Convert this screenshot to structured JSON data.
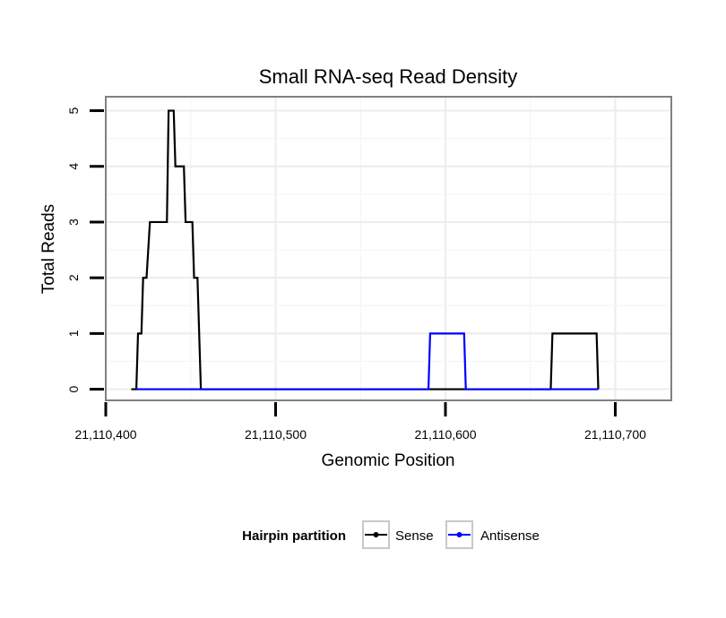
{
  "chart_data": {
    "type": "line",
    "title": "Small RNA-seq Read Density",
    "xlabel": "Genomic Position",
    "ylabel": "Total Reads",
    "xlim": [
      21110400,
      21110733
    ],
    "ylim": [
      -0.2,
      5.25
    ],
    "x_ticks": [
      21110400,
      21110500,
      21110600,
      21110700
    ],
    "x_tick_labels": [
      "21,110,400",
      "21,110,500",
      "21,110,600",
      "21,110,700"
    ],
    "y_ticks": [
      0,
      1,
      2,
      3,
      4,
      5
    ],
    "y_tick_labels": [
      "0",
      "1",
      "2",
      "3",
      "4",
      "5"
    ],
    "grid": true,
    "legend": {
      "title": "Hairpin partition",
      "position": "bottom",
      "entries": [
        "Sense",
        "Antisense"
      ]
    },
    "series": [
      {
        "name": "Sense",
        "color": "#000000",
        "step_points": [
          [
            21110415,
            0
          ],
          [
            21110418,
            0
          ],
          [
            21110419,
            1
          ],
          [
            21110421,
            1
          ],
          [
            21110422,
            2
          ],
          [
            21110424,
            2
          ],
          [
            21110426,
            3
          ],
          [
            21110436,
            3
          ],
          [
            21110437,
            5
          ],
          [
            21110440,
            5
          ],
          [
            21110441,
            4
          ],
          [
            21110446,
            4
          ],
          [
            21110447,
            3
          ],
          [
            21110451,
            3
          ],
          [
            21110452,
            2
          ],
          [
            21110454,
            2
          ],
          [
            21110456,
            0
          ],
          [
            21110662,
            0
          ],
          [
            21110663,
            1
          ],
          [
            21110689,
            1
          ],
          [
            21110690,
            0
          ]
        ]
      },
      {
        "name": "Antisense",
        "color": "#0000ff",
        "step_points": [
          [
            21110418,
            0
          ],
          [
            21110456,
            0
          ],
          [
            21110590,
            0
          ],
          [
            21110591,
            1
          ],
          [
            21110611,
            1
          ],
          [
            21110612,
            0
          ],
          [
            21110663,
            0
          ],
          [
            21110690,
            0
          ]
        ]
      }
    ]
  }
}
